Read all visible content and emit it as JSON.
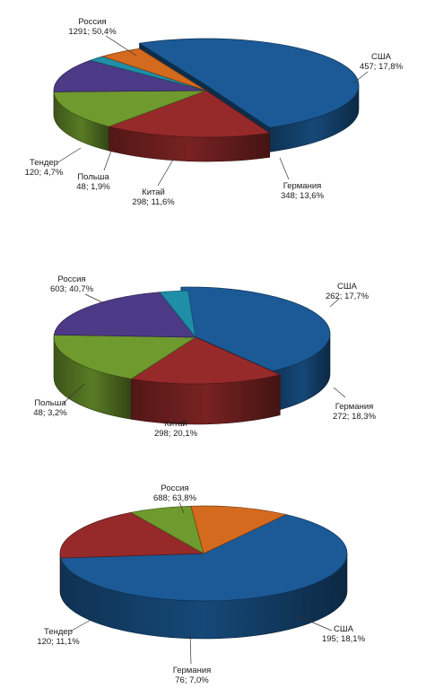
{
  "chart_data": [
    {
      "type": "pie",
      "slices": [
        {
          "name": "Россия",
          "value": 1291,
          "percent": "50,4%",
          "color": "#1b5a96"
        },
        {
          "name": "США",
          "value": 457,
          "percent": "17,8%",
          "color": "#962a2a"
        },
        {
          "name": "Германия",
          "value": 348,
          "percent": "13,6%",
          "color": "#6f9a2e"
        },
        {
          "name": "Китай",
          "value": 298,
          "percent": "11,6%",
          "color": "#4d3a86"
        },
        {
          "name": "Польша",
          "value": 48,
          "percent": "1,9%",
          "color": "#1f8fa8"
        },
        {
          "name": "Тендер",
          "value": 120,
          "percent": "4,7%",
          "color": "#d46a1e"
        }
      ],
      "labels": [
        "Россия\n1291; 50,4%",
        "США\n457; 17,8%",
        "Германия\n348; 13,6%",
        "Китай\n298; 11,6%",
        "Польша\n48; 1,9%",
        "Тендер\n120; 4,7%"
      ]
    },
    {
      "type": "pie",
      "slices": [
        {
          "name": "Россия",
          "value": 603,
          "percent": "40,7%",
          "color": "#1b5a96"
        },
        {
          "name": "США",
          "value": 262,
          "percent": "17,7%",
          "color": "#962a2a"
        },
        {
          "name": "Германия",
          "value": 272,
          "percent": "18,3%",
          "color": "#6f9a2e"
        },
        {
          "name": "Китай",
          "value": 298,
          "percent": "20,1%",
          "color": "#4d3a86"
        },
        {
          "name": "Польша",
          "value": 48,
          "percent": "3,2%",
          "color": "#1f8fa8"
        }
      ],
      "labels": [
        "Россия\n603; 40,7%",
        "США\n262; 17,7%",
        "Германия\n272; 18,3%",
        "Китай\n298; 20,1%",
        "Польша\n48; 3,2%"
      ]
    },
    {
      "type": "pie",
      "slices": [
        {
          "name": "Россия",
          "value": 688,
          "percent": "63,8%",
          "color": "#1b5a96"
        },
        {
          "name": "США",
          "value": 195,
          "percent": "18,1%",
          "color": "#962a2a"
        },
        {
          "name": "Германия",
          "value": 76,
          "percent": "7,0%",
          "color": "#6f9a2e"
        },
        {
          "name": "Тендер",
          "value": 120,
          "percent": "11,1%",
          "color": "#d46a1e"
        }
      ],
      "labels": [
        "Россия\n688; 63,8%",
        "США\n195; 18,1%",
        "Германия\n76; 7,0%",
        "Тендер\n120; 11,1%"
      ]
    }
  ]
}
